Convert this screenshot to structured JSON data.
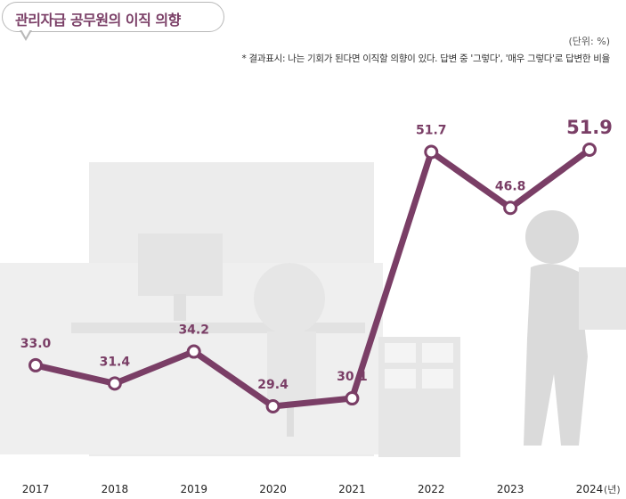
{
  "header": {
    "title": "관리자급 공무원의 이직 의향",
    "unit": "(단위: %)",
    "note": "* 결과표시: 나는 기회가 된다면 이직할 의향이 있다. 답변 중 '그렇다', '매우 그렇다'로 답변한 비율"
  },
  "colors": {
    "line": "#7a3e66",
    "title": "#7a3e66",
    "background_illustration": "#ececec"
  },
  "chart_data": {
    "type": "line",
    "title": "관리자급 공무원의 이직 의향",
    "xlabel": "",
    "ylabel": "",
    "ylim": [
      25,
      55
    ],
    "x_unit": "(년)",
    "categories": [
      "2017",
      "2018",
      "2019",
      "2020",
      "2021",
      "2022",
      "2023",
      "2024"
    ],
    "values": [
      33.0,
      31.4,
      34.2,
      29.4,
      30.1,
      51.7,
      46.8,
      51.9
    ],
    "value_labels": [
      "33.0",
      "31.4",
      "34.2",
      "29.4",
      "30.1",
      "51.7",
      "46.8",
      "51.9"
    ],
    "highlight_last": true,
    "grid": false
  }
}
